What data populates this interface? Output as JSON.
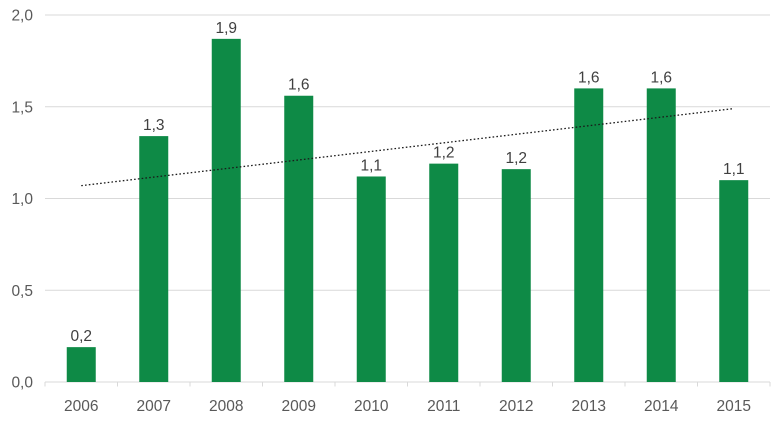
{
  "chart_data": {
    "type": "bar",
    "title": "",
    "xlabel": "",
    "ylabel": "",
    "categories": [
      "2006",
      "2007",
      "2008",
      "2009",
      "2010",
      "2011",
      "2012",
      "2013",
      "2014",
      "2015"
    ],
    "values": [
      0.19,
      1.34,
      1.87,
      1.56,
      1.12,
      1.19,
      1.16,
      1.6,
      1.6,
      1.1
    ],
    "bar_labels": [
      "0,2",
      "1,3",
      "1,9",
      "1,6",
      "1,1",
      "1,2",
      "1,2",
      "1,6",
      "1,6",
      "1,1"
    ],
    "y_tick_labels": [
      "0,0",
      "0,5",
      "1,0",
      "1,5",
      "2,0"
    ],
    "y_tick_values": [
      0,
      0.5,
      1.0,
      1.5,
      2.0
    ],
    "ylim": [
      0,
      2.0
    ],
    "grid": true,
    "legend": false,
    "decimal_separator": ",",
    "colors": {
      "bar": "#0e8a46",
      "gridline": "#d9d9d9",
      "axis_line": "#d9d9d9",
      "axis_text": "#595959",
      "data_label_text": "#404040",
      "trendline": "#1a1a1a",
      "background": "#ffffff"
    },
    "trendline": {
      "style": "dotted",
      "color": "#1a1a1a",
      "start_value": 1.07,
      "end_value": 1.49,
      "spans": "2006 center to 2015 center"
    }
  }
}
